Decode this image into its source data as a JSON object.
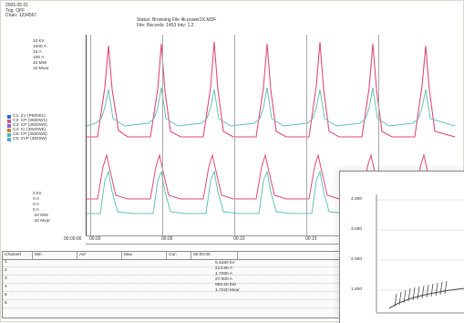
{
  "header": {
    "date": "2005.05.01",
    "trig": "Trig: OFF",
    "chan": "Chan: 1234567",
    "status": "Status: Browsing File 4k-power2X.MDF",
    "file": "File: Records: 1453 Intv: 1.2"
  },
  "left_scales": {
    "top": [
      "10 kV",
      "1000 A",
      "10 A",
      "100 A",
      "10 MW",
      "10 Mvar"
    ],
    "bottom": [
      "0 kV",
      "0 A",
      "0 A",
      "0 A",
      "-10 MW",
      "-10 Mvar"
    ]
  },
  "legend": [
    {
      "label": "C1: 2V (PM/001)",
      "color": "#2d6bd0"
    },
    {
      "label": "C2: CP (3820W1)",
      "color": "#d94f7a"
    },
    {
      "label": "C3: CP (3820W0)",
      "color": "#8b5fd0"
    },
    {
      "label": "C4: CI (3820W0)",
      "color": "#d07b2d"
    },
    {
      "label": "C5: CP (3820W0)",
      "color": "#49b8b4"
    },
    {
      "label": "C6: 2VP (3820W)",
      "color": "#5f9fe0"
    }
  ],
  "time_axis": {
    "start": "00:00:00",
    "ticks": [
      "00:00",
      "00:05",
      "00:10",
      "00:15"
    ]
  },
  "table": {
    "headers": [
      "Channel",
      "Min",
      "Avr",
      "Max",
      "Cur:",
      "00:00:00"
    ],
    "rows": [
      "1",
      "2",
      "3",
      "4",
      "5",
      "6"
    ],
    "values": [
      "5.4280 kV",
      "213.80 A",
      "1.7060 A",
      "27.000 A",
      "966.50 kW",
      "1.7220 Mvar"
    ]
  },
  "inset_ticks": [
    "4.000",
    "3.000",
    "2.000",
    "1.000"
  ],
  "colors": {
    "red": "#e24a75",
    "teal": "#63c3b5"
  }
}
